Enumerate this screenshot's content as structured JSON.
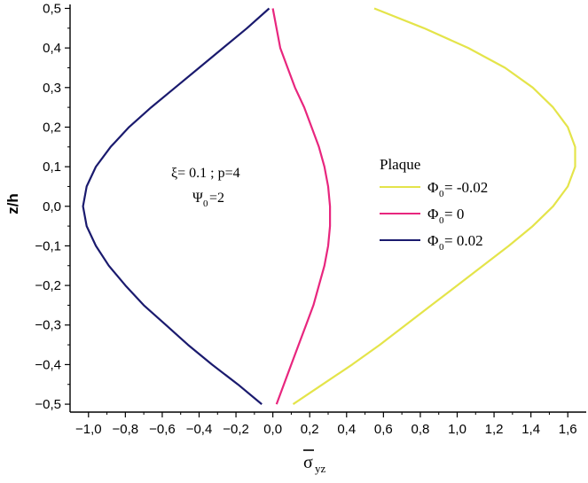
{
  "chart_data": {
    "type": "line",
    "ylabel": "z/h",
    "xlabel": {
      "main": "σ",
      "sub": "yz",
      "overbar": true
    },
    "xlim": [
      -1.1,
      1.7
    ],
    "ylim": [
      -0.52,
      0.51
    ],
    "x_ticks": [
      -1.0,
      -0.8,
      -0.6,
      -0.4,
      -0.2,
      0.0,
      0.2,
      0.4,
      0.6,
      0.8,
      1.0,
      1.2,
      1.4,
      1.6
    ],
    "x_tick_labels": [
      "−1,0",
      "−0,8",
      "−0,6",
      "−0,4",
      "−0,2",
      "0,0",
      "0,2",
      "0,4",
      "0,6",
      "0,8",
      "1,0",
      "1,2",
      "1,4",
      "1,6"
    ],
    "y_ticks": [
      0.5,
      0.4,
      0.3,
      0.2,
      0.1,
      0.0,
      -0.1,
      -0.2,
      -0.3,
      -0.4,
      -0.5
    ],
    "y_tick_labels": [
      "0,5",
      "0,4",
      "0,3",
      "0,2",
      "0,1",
      "0,0",
      "−0,1",
      "−0,2",
      "−0,3",
      "−0,4",
      "−0,5"
    ],
    "annotation": {
      "line1": "ξ= 0.1 ; p=4",
      "line2_main": "Ψ",
      "line2_sub": "0",
      "line2_rest": "=2"
    },
    "legend": {
      "title": "Plaque",
      "placement": "right-middle"
    },
    "series": [
      {
        "name_main": "Φ",
        "name_sub": "0",
        "name_rest": "= -0.02",
        "color": "#e4e44a",
        "points": [
          [
            0.11,
            -0.5
          ],
          [
            0.27,
            -0.45
          ],
          [
            0.43,
            -0.4
          ],
          [
            0.58,
            -0.35
          ],
          [
            0.72,
            -0.3
          ],
          [
            0.86,
            -0.25
          ],
          [
            1.0,
            -0.2
          ],
          [
            1.14,
            -0.15
          ],
          [
            1.28,
            -0.1
          ],
          [
            1.41,
            -0.05
          ],
          [
            1.52,
            0.0
          ],
          [
            1.6,
            0.05
          ],
          [
            1.64,
            0.1
          ],
          [
            1.64,
            0.15
          ],
          [
            1.6,
            0.2
          ],
          [
            1.52,
            0.25
          ],
          [
            1.41,
            0.3
          ],
          [
            1.26,
            0.35
          ],
          [
            1.06,
            0.4
          ],
          [
            0.82,
            0.45
          ],
          [
            0.55,
            0.5
          ]
        ]
      },
      {
        "name_main": "Φ",
        "name_sub": "0",
        "name_rest": "= 0",
        "color": "#e8267e",
        "points": [
          [
            0.02,
            -0.5
          ],
          [
            0.06,
            -0.45
          ],
          [
            0.1,
            -0.4
          ],
          [
            0.14,
            -0.35
          ],
          [
            0.18,
            -0.3
          ],
          [
            0.22,
            -0.25
          ],
          [
            0.25,
            -0.2
          ],
          [
            0.28,
            -0.15
          ],
          [
            0.3,
            -0.1
          ],
          [
            0.31,
            -0.05
          ],
          [
            0.31,
            0.0
          ],
          [
            0.3,
            0.05
          ],
          [
            0.28,
            0.1
          ],
          [
            0.25,
            0.15
          ],
          [
            0.21,
            0.2
          ],
          [
            0.17,
            0.25
          ],
          [
            0.12,
            0.3
          ],
          [
            0.08,
            0.35
          ],
          [
            0.04,
            0.4
          ],
          [
            0.02,
            0.45
          ],
          [
            0.0,
            0.5
          ]
        ]
      },
      {
        "name_main": "Φ",
        "name_sub": "0",
        "name_rest": "= 0.02",
        "color": "#1a1a6e",
        "points": [
          [
            -0.06,
            -0.5
          ],
          [
            -0.19,
            -0.45
          ],
          [
            -0.33,
            -0.4
          ],
          [
            -0.46,
            -0.35
          ],
          [
            -0.58,
            -0.3
          ],
          [
            -0.7,
            -0.25
          ],
          [
            -0.8,
            -0.2
          ],
          [
            -0.89,
            -0.15
          ],
          [
            -0.96,
            -0.1
          ],
          [
            -1.01,
            -0.05
          ],
          [
            -1.03,
            0.0
          ],
          [
            -1.01,
            0.05
          ],
          [
            -0.96,
            0.1
          ],
          [
            -0.88,
            0.15
          ],
          [
            -0.78,
            0.2
          ],
          [
            -0.66,
            0.25
          ],
          [
            -0.53,
            0.3
          ],
          [
            -0.4,
            0.35
          ],
          [
            -0.27,
            0.4
          ],
          [
            -0.14,
            0.45
          ],
          [
            -0.02,
            0.5
          ]
        ]
      }
    ]
  }
}
